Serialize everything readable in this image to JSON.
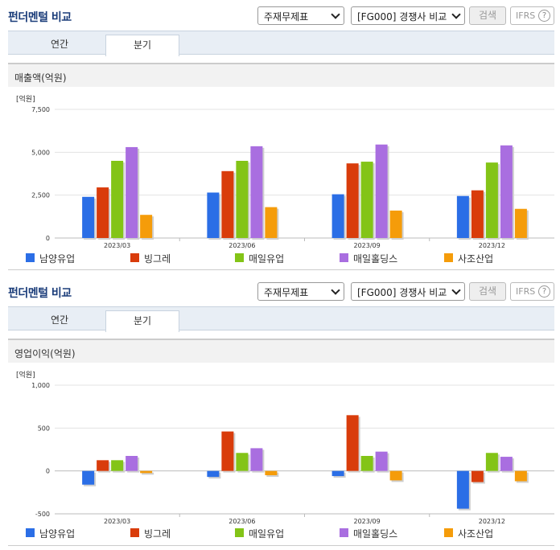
{
  "colors": {
    "series": [
      "#2b6ee6",
      "#d93c0b",
      "#83c417",
      "#a96ee0",
      "#f59c0a"
    ]
  },
  "sections": [
    {
      "header": {
        "title": "펀더멘털 비교",
        "statement_select": "주재무제표",
        "peer_select": "[FG000] 경쟁사 비교",
        "search_label": "검색",
        "ifrs_label": "IFRS",
        "help_glyph": "?"
      },
      "tabs": [
        {
          "label": "연간",
          "active": false
        },
        {
          "label": "분기",
          "active": true
        }
      ],
      "panel_title": "매출액(억원)",
      "chart_data": {
        "type": "bar",
        "unit_label": "[억원]",
        "categories": [
          "2023/03",
          "2023/06",
          "2023/09",
          "2023/12"
        ],
        "ylim": [
          0,
          7500
        ],
        "yticks": [
          0,
          2500,
          5000,
          7500
        ],
        "ytick_labels": [
          "0",
          "2,500",
          "5,000",
          "7,500"
        ],
        "grid": true,
        "legend_position": "bottom",
        "series": [
          {
            "name": "남양유업",
            "values": [
              2400,
              2650,
              2550,
              2450
            ]
          },
          {
            "name": "빙그레",
            "values": [
              2950,
              3900,
              4350,
              2780
            ]
          },
          {
            "name": "매일유업",
            "values": [
              4500,
              4500,
              4450,
              4400
            ]
          },
          {
            "name": "매일홀딩스",
            "values": [
              5300,
              5350,
              5450,
              5400
            ]
          },
          {
            "name": "사조산업",
            "values": [
              1350,
              1800,
              1600,
              1700
            ]
          }
        ]
      }
    },
    {
      "header": {
        "title": "펀더멘털 비교",
        "statement_select": "주재무제표",
        "peer_select": "[FG000] 경쟁사 비교",
        "search_label": "검색",
        "ifrs_label": "IFRS",
        "help_glyph": "?"
      },
      "tabs": [
        {
          "label": "연간",
          "active": false
        },
        {
          "label": "분기",
          "active": true
        }
      ],
      "panel_title": "영업이익(억원)",
      "chart_data": {
        "type": "bar",
        "unit_label": "[억원]",
        "categories": [
          "2023/03",
          "2023/06",
          "2023/09",
          "2023/12"
        ],
        "ylim": [
          -500,
          1000
        ],
        "yticks": [
          -500,
          0,
          500,
          1000
        ],
        "ytick_labels": [
          "-500",
          "0",
          "500",
          "1,000"
        ],
        "grid": true,
        "legend_position": "bottom",
        "series": [
          {
            "name": "남양유업",
            "values": [
              -160,
              -70,
              -60,
              -440
            ]
          },
          {
            "name": "빙그레",
            "values": [
              125,
              460,
              650,
              -130
            ]
          },
          {
            "name": "매일유업",
            "values": [
              125,
              210,
              175,
              210
            ]
          },
          {
            "name": "매일홀딩스",
            "values": [
              175,
              265,
              225,
              165
            ]
          },
          {
            "name": "사조산업",
            "values": [
              -25,
              -50,
              -110,
              -120
            ]
          }
        ]
      }
    }
  ]
}
